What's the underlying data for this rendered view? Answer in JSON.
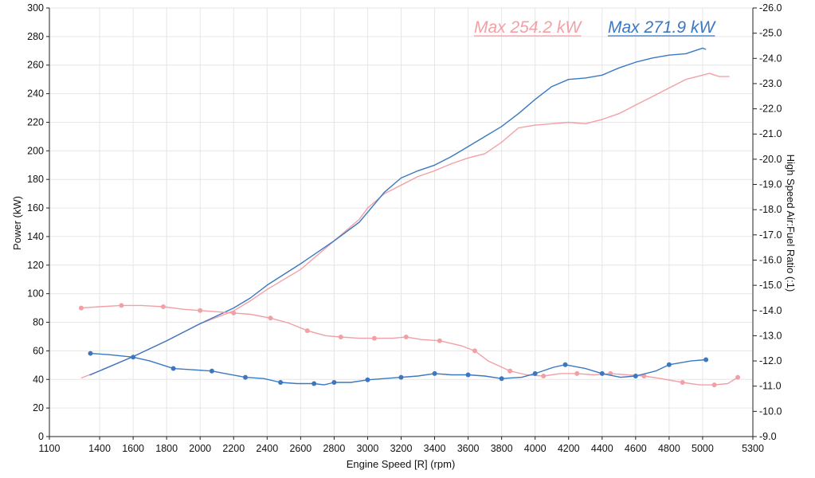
{
  "chart_data": {
    "type": "line",
    "xlabel": "Engine Speed [R] (rpm)",
    "ylabel_left": "Power (kW)",
    "ylabel_right": "High Speed Air:Fuel Ratio (:1)",
    "x_ticks": [
      1100,
      1400,
      1600,
      1800,
      2000,
      2200,
      2400,
      2600,
      2800,
      3000,
      3200,
      3400,
      3600,
      3800,
      4000,
      4200,
      4400,
      4600,
      4800,
      5000,
      5300
    ],
    "y_left_ticks": [
      0,
      20,
      40,
      60,
      80,
      100,
      120,
      140,
      160,
      180,
      200,
      220,
      240,
      260,
      280,
      300
    ],
    "y_right_ticks": [
      "9.0",
      "10.0",
      "11.0",
      "12.0",
      "13.0",
      "14.0",
      "15.0",
      "16.0",
      "17.0",
      "18.0",
      "19.0",
      "20.0",
      "21.0",
      "22.0",
      "23.0",
      "24.0",
      "25.0",
      "26.0"
    ],
    "xlim": [
      1100,
      5300
    ],
    "ylim_left": [
      0,
      300
    ],
    "ylim_right": [
      9.0,
      26.0
    ],
    "grid": true,
    "annotations": [
      {
        "text": "Max 254.2 kW",
        "color": "#f2a0a6"
      },
      {
        "text": "Max 271.9 kW",
        "color": "#3a78c2"
      }
    ],
    "series": [
      {
        "axis": "left",
        "color": "#f2a0a6",
        "x": [
          1290,
          1400,
          1600,
          1800,
          2000,
          2200,
          2300,
          2400,
          2600,
          2800,
          2950,
          3000,
          3100,
          3200,
          3300,
          3400,
          3500,
          3600,
          3700,
          3800,
          3900,
          4000,
          4100,
          4200,
          4300,
          4400,
          4500,
          4600,
          4700,
          4800,
          4900,
          5000,
          5040,
          5100,
          5160
        ],
        "values": [
          41,
          46,
          56,
          67,
          79,
          88,
          95,
          103,
          117,
          137,
          152,
          160,
          170,
          176,
          182,
          186,
          191,
          195,
          198,
          206,
          216,
          218,
          219,
          220,
          219,
          222,
          226,
          232,
          238,
          244,
          250,
          253,
          254.2,
          252,
          252
        ]
      },
      {
        "axis": "left",
        "color": "#3a78c2",
        "x": [
          1340,
          1400,
          1600,
          1800,
          2000,
          2200,
          2300,
          2400,
          2600,
          2800,
          2950,
          3000,
          3100,
          3200,
          3300,
          3400,
          3500,
          3600,
          3700,
          3800,
          3900,
          4000,
          4100,
          4200,
          4300,
          4400,
          4500,
          4600,
          4700,
          4800,
          4900,
          5000,
          5020
        ],
        "values": [
          43,
          46,
          56,
          67,
          79,
          90,
          97,
          106,
          121,
          137,
          150,
          157,
          171,
          181,
          186,
          190,
          196,
          203,
          210,
          217,
          226,
          236,
          245,
          250,
          251,
          253,
          258,
          262,
          265,
          267,
          268,
          271.9,
          271
        ]
      },
      {
        "axis": "right",
        "color": "#f2a0a6",
        "x": [
          1290,
          1400,
          1530,
          1650,
          1780,
          1900,
          2000,
          2100,
          2200,
          2300,
          2420,
          2530,
          2640,
          2750,
          2840,
          2950,
          3040,
          3150,
          3230,
          3320,
          3430,
          3560,
          3640,
          3720,
          3850,
          3950,
          4050,
          4150,
          4250,
          4350,
          4450,
          4550,
          4650,
          4750,
          4880,
          4980,
          5070,
          5150,
          5210
        ],
        "values": [
          14.1,
          14.15,
          14.2,
          14.2,
          14.15,
          14.05,
          14.0,
          13.95,
          13.9,
          13.85,
          13.7,
          13.5,
          13.2,
          13.0,
          12.95,
          12.9,
          12.9,
          12.9,
          12.95,
          12.85,
          12.8,
          12.6,
          12.4,
          12.0,
          11.6,
          11.45,
          11.4,
          11.5,
          11.5,
          11.45,
          11.5,
          11.45,
          11.4,
          11.3,
          11.15,
          11.05,
          11.05,
          11.1,
          11.35
        ]
      },
      {
        "axis": "right",
        "color": "#3a78c2",
        "x": [
          1345,
          1450,
          1600,
          1700,
          1840,
          1950,
          2070,
          2150,
          2270,
          2380,
          2480,
          2580,
          2680,
          2740,
          2800,
          2900,
          3000,
          3100,
          3200,
          3300,
          3400,
          3500,
          3600,
          3700,
          3800,
          3920,
          4000,
          4110,
          4180,
          4300,
          4400,
          4510,
          4600,
          4720,
          4800,
          4930,
          5020
        ],
        "values": [
          12.3,
          12.25,
          12.15,
          12.0,
          11.7,
          11.65,
          11.6,
          11.5,
          11.35,
          11.3,
          11.15,
          11.1,
          11.1,
          11.05,
          11.15,
          11.15,
          11.25,
          11.3,
          11.35,
          11.4,
          11.5,
          11.45,
          11.45,
          11.4,
          11.3,
          11.35,
          11.5,
          11.75,
          11.85,
          11.7,
          11.5,
          11.35,
          11.4,
          11.6,
          11.85,
          12.0,
          12.05
        ]
      }
    ]
  }
}
